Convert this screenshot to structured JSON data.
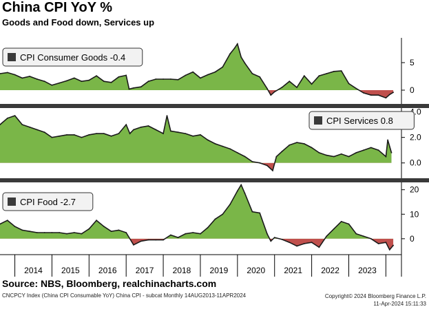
{
  "header": {
    "title": "China CPI YoY %",
    "subtitle": "Goods and Food down, Services up"
  },
  "footer": {
    "source": "Source: NBS, Bloomberg, realchinacharts.com",
    "index_line": "CNCPCY Index (China CPI Consumable YoY) China CPI - subcat  Monthly 14AUG2013-11APR2024",
    "copyright": "Copyright© 2024 Bloomberg Finance L.P.",
    "timestamp": "11-Apr-2024 15:11:33"
  },
  "colors": {
    "positive_fill": "#7ab648",
    "negative_fill": "#c0504d",
    "line": "#1a1a1a",
    "separator": "#3a3a3a"
  },
  "chart_data": [
    {
      "type": "area",
      "panel": "consumer_goods",
      "legend": "CPI Consumer Goods  -0.4",
      "legend_position": "top-left",
      "ylim": [
        -2.5,
        9.5
      ],
      "yticks": [
        0,
        5
      ],
      "ytick_labels": [
        "0",
        "5"
      ],
      "x": [
        2013.6,
        2013.8,
        2014.0,
        2014.2,
        2014.4,
        2014.6,
        2014.8,
        2015.0,
        2015.2,
        2015.4,
        2015.6,
        2015.8,
        2016.0,
        2016.2,
        2016.4,
        2016.6,
        2016.8,
        2017.0,
        2017.08,
        2017.2,
        2017.4,
        2017.6,
        2017.8,
        2018.0,
        2018.2,
        2018.4,
        2018.6,
        2018.8,
        2019.0,
        2019.2,
        2019.4,
        2019.6,
        2019.8,
        2019.92,
        2020.0,
        2020.1,
        2020.2,
        2020.4,
        2020.6,
        2020.8,
        2020.9,
        2021.0,
        2021.2,
        2021.4,
        2021.6,
        2021.8,
        2022.0,
        2022.2,
        2022.4,
        2022.6,
        2022.8,
        2023.0,
        2023.2,
        2023.4,
        2023.6,
        2023.8,
        2024.0,
        2024.1,
        2024.2
      ],
      "values": [
        3.0,
        3.2,
        2.8,
        2.2,
        2.5,
        2.0,
        1.6,
        0.9,
        1.3,
        1.7,
        2.2,
        1.6,
        1.8,
        2.6,
        1.6,
        1.4,
        2.4,
        2.7,
        0.2,
        0.4,
        0.6,
        1.6,
        2.0,
        2.0,
        2.0,
        1.9,
        2.7,
        3.3,
        2.2,
        2.8,
        3.3,
        4.2,
        6.6,
        7.6,
        8.4,
        6.0,
        4.9,
        3.0,
        2.4,
        0.3,
        -0.9,
        -0.3,
        0.5,
        1.6,
        0.5,
        2.6,
        1.1,
        2.6,
        3.0,
        3.4,
        3.5,
        1.2,
        0.3,
        -0.5,
        -0.9,
        -0.9,
        -1.4,
        -0.8,
        -0.4
      ]
    },
    {
      "type": "area",
      "panel": "services",
      "legend": "CPI Services  0.8",
      "legend_position": "top-right",
      "ylim": [
        -1.2,
        4.3
      ],
      "yticks": [
        0,
        2,
        4
      ],
      "ytick_labels": [
        "0.0",
        "2.0",
        "4.0"
      ],
      "x": [
        2013.6,
        2013.8,
        2014.0,
        2014.2,
        2014.4,
        2014.6,
        2014.8,
        2015.0,
        2015.2,
        2015.4,
        2015.6,
        2015.8,
        2016.0,
        2016.2,
        2016.4,
        2016.6,
        2016.8,
        2017.0,
        2017.1,
        2017.2,
        2017.4,
        2017.6,
        2017.8,
        2018.0,
        2018.1,
        2018.2,
        2018.4,
        2018.6,
        2018.8,
        2019.0,
        2019.2,
        2019.4,
        2019.6,
        2019.8,
        2020.0,
        2020.2,
        2020.4,
        2020.6,
        2020.8,
        2020.95,
        2021.05,
        2021.2,
        2021.4,
        2021.6,
        2021.8,
        2022.0,
        2022.2,
        2022.4,
        2022.6,
        2022.8,
        2023.0,
        2023.2,
        2023.4,
        2023.6,
        2023.8,
        2024.0,
        2024.05,
        2024.15
      ],
      "values": [
        3.0,
        3.5,
        3.7,
        3.0,
        2.8,
        2.6,
        2.4,
        2.0,
        2.1,
        2.2,
        2.2,
        2.0,
        2.2,
        2.3,
        2.3,
        2.1,
        2.3,
        3.0,
        2.3,
        2.6,
        2.8,
        2.9,
        2.6,
        2.3,
        3.7,
        2.5,
        2.4,
        2.3,
        2.1,
        2.2,
        1.8,
        1.5,
        1.3,
        1.1,
        0.8,
        0.5,
        0.1,
        0.0,
        -0.2,
        -0.6,
        0.5,
        0.9,
        1.4,
        1.6,
        1.5,
        1.2,
        0.8,
        0.6,
        0.5,
        0.7,
        0.5,
        0.8,
        1.0,
        1.2,
        1.0,
        0.5,
        1.8,
        0.8
      ]
    },
    {
      "type": "area",
      "panel": "food",
      "legend": "CPI Food  -2.7",
      "legend_position": "top-left",
      "ylim": [
        -6.5,
        23
      ],
      "yticks": [
        0,
        10,
        20
      ],
      "ytick_labels": [
        "0",
        "10",
        "20"
      ],
      "x": [
        2013.6,
        2013.8,
        2014.0,
        2014.2,
        2014.4,
        2014.6,
        2014.8,
        2015.0,
        2015.2,
        2015.4,
        2015.6,
        2015.8,
        2016.0,
        2016.2,
        2016.4,
        2016.6,
        2016.8,
        2017.0,
        2017.2,
        2017.4,
        2017.6,
        2017.8,
        2018.0,
        2018.2,
        2018.4,
        2018.6,
        2018.8,
        2019.0,
        2019.2,
        2019.4,
        2019.6,
        2019.8,
        2020.0,
        2020.1,
        2020.2,
        2020.4,
        2020.6,
        2020.8,
        2020.9,
        2021.0,
        2021.2,
        2021.4,
        2021.6,
        2021.8,
        2022.0,
        2022.2,
        2022.4,
        2022.6,
        2022.8,
        2023.0,
        2023.2,
        2023.4,
        2023.6,
        2023.8,
        2024.0,
        2024.1,
        2024.2
      ],
      "values": [
        6.0,
        7.5,
        5.0,
        3.5,
        3.0,
        2.5,
        2.5,
        2.5,
        2.5,
        2.0,
        2.5,
        2.0,
        4.0,
        7.5,
        5.0,
        3.0,
        3.5,
        2.5,
        -2.5,
        -1.0,
        -0.5,
        -0.5,
        -0.5,
        1.5,
        0.5,
        2.0,
        2.5,
        2.0,
        4.5,
        8.0,
        10.0,
        14.0,
        19.5,
        22.0,
        18.5,
        11.0,
        10.5,
        2.0,
        -1.0,
        0.5,
        -0.3,
        -1.5,
        -3.0,
        -2.0,
        -1.5,
        -3.5,
        1.0,
        4.0,
        7.0,
        6.0,
        2.0,
        1.0,
        0.0,
        -2.0,
        -1.5,
        -4.5,
        -2.7
      ]
    }
  ],
  "x_axis": {
    "range": [
      2013.6,
      2024.42
    ],
    "years": [
      "2014",
      "2015",
      "2016",
      "2017",
      "2018",
      "2019",
      "2020",
      "2021",
      "2022",
      "2023"
    ]
  }
}
